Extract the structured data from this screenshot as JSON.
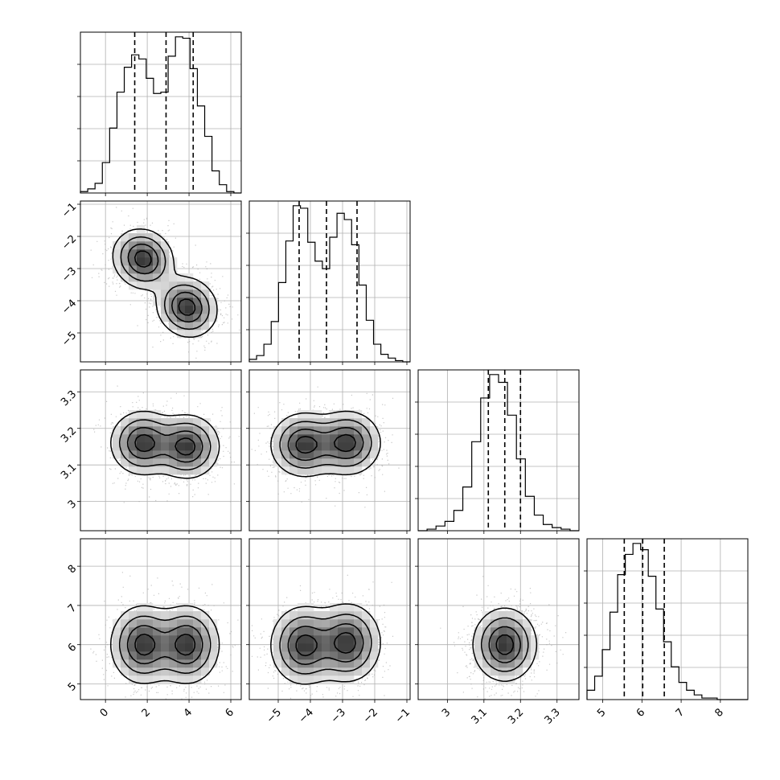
{
  "chart_data": {
    "type": "corner",
    "grid": true,
    "parameters": [
      {
        "name": "",
        "range": [
          -1.2,
          6.5
        ],
        "ticks": [
          0,
          2,
          4,
          6
        ],
        "quantiles": [
          1.4,
          2.9,
          4.2
        ],
        "hist_values": [
          0.01,
          0.03,
          0.07,
          0.22,
          0.47,
          0.73,
          0.91,
          1.0,
          0.97,
          0.83,
          0.72,
          0.73,
          0.99,
          1.13,
          1.12,
          0.9,
          0.63,
          0.41,
          0.16,
          0.06,
          0.01,
          0.0
        ],
        "mixture": [
          {
            "mean": 1.8,
            "sd": 0.8,
            "w": 0.5
          },
          {
            "mean": 3.9,
            "sd": 0.8,
            "w": 0.5
          }
        ]
      },
      {
        "name": "",
        "range": [
          -5.9,
          -0.9
        ],
        "ticks": [
          -5,
          -4,
          -3,
          -2,
          -1
        ],
        "quantiles": [
          -4.35,
          -3.5,
          -2.55
        ],
        "hist_values": [
          0.02,
          0.05,
          0.14,
          0.32,
          0.63,
          0.96,
          1.24,
          1.22,
          0.95,
          0.8,
          0.74,
          0.99,
          1.18,
          1.13,
          0.93,
          0.61,
          0.33,
          0.14,
          0.06,
          0.03,
          0.01,
          0.0
        ],
        "mixture": [
          {
            "mean": -4.2,
            "sd": 0.5,
            "w": 0.5
          },
          {
            "mean": -2.8,
            "sd": 0.5,
            "w": 0.5
          }
        ]
      },
      {
        "name": "",
        "range": [
          2.92,
          3.36
        ],
        "ticks": [
          3.0,
          3.1,
          3.2,
          3.3
        ],
        "quantiles": [
          3.112,
          3.157,
          3.2
        ],
        "hist_values": [
          0.0,
          0.01,
          0.03,
          0.06,
          0.13,
          0.28,
          0.57,
          0.85,
          1.0,
          0.95,
          0.74,
          0.46,
          0.22,
          0.1,
          0.04,
          0.02,
          0.01,
          0.0
        ],
        "mixture": [
          {
            "mean": 3.158,
            "sd": 0.043,
            "w": 1.0
          }
        ]
      },
      {
        "name": "",
        "range": [
          4.6,
          8.7
        ],
        "ticks": [
          5,
          6,
          7,
          8
        ],
        "quantiles": [
          5.55,
          6.02,
          6.57
        ],
        "hist_values": [
          0.06,
          0.15,
          0.32,
          0.56,
          0.8,
          0.93,
          1.0,
          0.96,
          0.79,
          0.58,
          0.37,
          0.21,
          0.11,
          0.06,
          0.03,
          0.01,
          0.01,
          0.0,
          0.0,
          0.0,
          0.0
        ],
        "mixture": [
          {
            "mean": 6.02,
            "sd": 0.48,
            "w": 1.0
          }
        ]
      }
    ],
    "correlations": [
      {
        "x": 0,
        "y": 1,
        "components": [
          {
            "mean": [
              1.8,
              -2.7
            ],
            "sd": [
              0.7,
              0.45
            ],
            "rho": -0.1
          },
          {
            "mean": [
              3.9,
              -4.2
            ],
            "sd": [
              0.7,
              0.45
            ],
            "rho": -0.1
          }
        ]
      },
      {
        "x": 0,
        "y": 2,
        "components": [
          {
            "mean": [
              1.8,
              3.16
            ],
            "sd": [
              0.75,
              0.042
            ],
            "rho": 0
          },
          {
            "mean": [
              3.9,
              3.15
            ],
            "sd": [
              0.75,
              0.042
            ],
            "rho": 0
          }
        ]
      },
      {
        "x": 1,
        "y": 2,
        "components": [
          {
            "mean": [
              -4.2,
              3.155
            ],
            "sd": [
              0.5,
              0.042
            ],
            "rho": 0
          },
          {
            "mean": [
              -2.85,
              3.16
            ],
            "sd": [
              0.5,
              0.042
            ],
            "rho": 0
          }
        ]
      },
      {
        "x": 0,
        "y": 3,
        "components": [
          {
            "mean": [
              1.8,
              6.0
            ],
            "sd": [
              0.75,
              0.48
            ],
            "rho": 0
          },
          {
            "mean": [
              3.9,
              6.0
            ],
            "sd": [
              0.75,
              0.48
            ],
            "rho": 0
          }
        ]
      },
      {
        "x": 1,
        "y": 3,
        "components": [
          {
            "mean": [
              -4.2,
              5.98
            ],
            "sd": [
              0.5,
              0.48
            ],
            "rho": 0
          },
          {
            "mean": [
              -2.85,
              6.05
            ],
            "sd": [
              0.5,
              0.48
            ],
            "rho": 0
          }
        ]
      },
      {
        "x": 2,
        "y": 3,
        "components": [
          {
            "mean": [
              3.157,
              6.0
            ],
            "sd": [
              0.042,
              0.45
            ],
            "rho": 0
          }
        ]
      }
    ]
  }
}
